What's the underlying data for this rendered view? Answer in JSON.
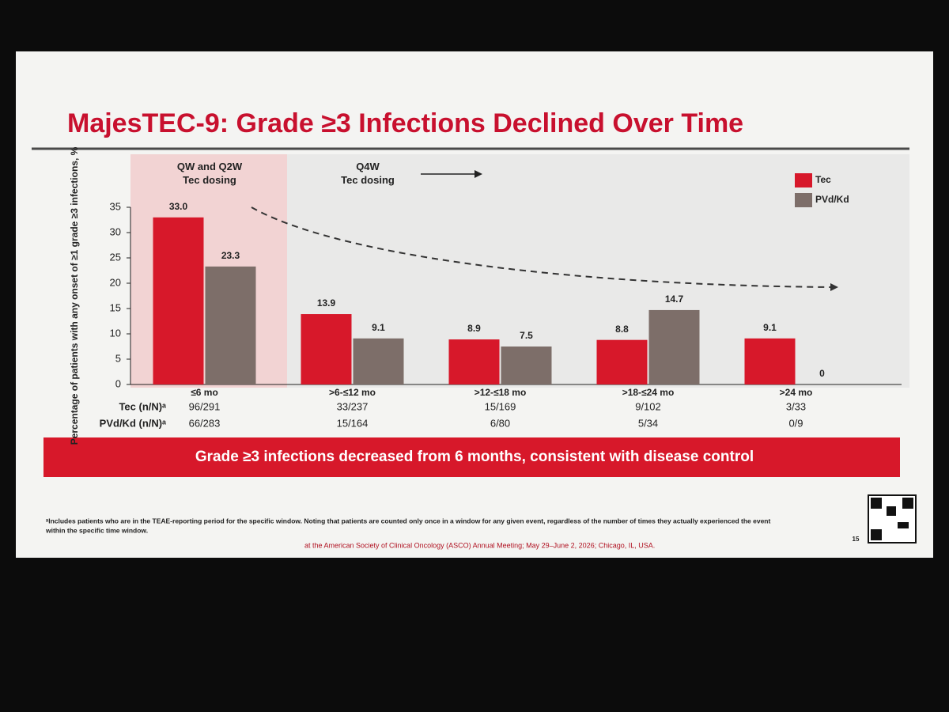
{
  "chart_data": {
    "type": "bar",
    "title": "MajesTEC-9: Grade ≥3 Infections Declined Over Time",
    "y_label": "Percentage of patients with any onset of ≥1 grade ≥3 infections, %",
    "annotations": [
      "QW and Q2W Tec dosing",
      "Q4W Tec dosing"
    ],
    "categories": [
      "≤6 mo",
      ">6-≤12 mo",
      ">12-≤18 mo",
      ">18-≤24 mo",
      ">24 mo"
    ],
    "series": [
      {
        "name": "Tec",
        "color": "#d7182a",
        "values": [
          33.0,
          13.9,
          8.9,
          8.8,
          9.1
        ],
        "value_labels": [
          "33.0",
          "13.9",
          "8.9",
          "8.8",
          "9.1"
        ]
      },
      {
        "name": "PVd/Kd",
        "color": "#7d6e69",
        "values": [
          23.3,
          9.1,
          7.5,
          14.7,
          0
        ],
        "value_labels": [
          "23.3",
          "9.1",
          "7.5",
          "14.7",
          "0"
        ]
      }
    ],
    "ylim": [
      0,
      35
    ],
    "yticks": [
      0,
      5,
      10,
      15,
      20,
      25,
      30,
      35
    ],
    "legend": "top-right",
    "sample_sizes": [
      {
        "label": "Tec (n/N)ᵃ",
        "values": [
          "96/291",
          "33/237",
          "15/169",
          "9/102",
          "3/33"
        ]
      },
      {
        "label": "PVd/Kd (n/N)ᵃ",
        "values": [
          "66/283",
          "15/164",
          "6/80",
          "5/34",
          "0/9"
        ]
      }
    ],
    "banner": "Grade ≥3 infections decreased from 6 months, consistent with disease control",
    "footnote": [
      "ᵃIncludes patients who are in the TEAE-reporting period for the specific window. Noting that patients are counted only once in a window for any given event, regardless of the number of times they actually experienced the event",
      "within the specific time window."
    ],
    "citation": "at the American Society of Clinical Oncology (ASCO) Annual Meeting; May 29–June 2, 2026; Chicago, IL, USA.",
    "page_number": "15"
  }
}
